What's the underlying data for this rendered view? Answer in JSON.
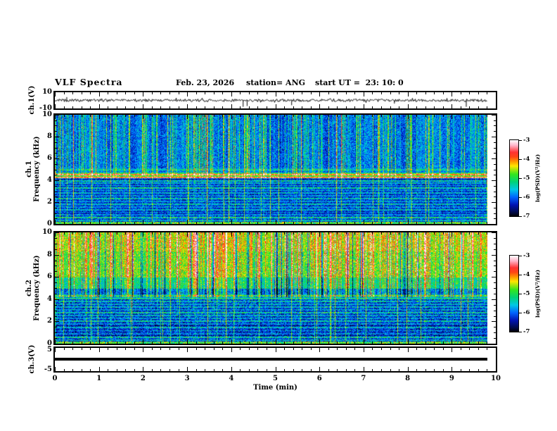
{
  "header": {
    "title": "VLF Spectra",
    "date": "Feb. 23, 2026",
    "station": "station= ANG",
    "start_ut": "start UT =  23: 10: 0"
  },
  "x_axis": {
    "label": "Time (min)",
    "min": 0,
    "max": 10,
    "major_tick_labels": [
      "0",
      "1",
      "2",
      "3",
      "4",
      "5",
      "6",
      "7",
      "8",
      "9",
      "10"
    ],
    "minor_step": 0.2,
    "data_end_min": 9.8
  },
  "panels": {
    "ch1_volt": {
      "ylabel": "ch.1(V)",
      "ymin": -10,
      "ymax": 10,
      "tick_labels": [
        "10",
        "-10"
      ]
    },
    "ch1_spec": {
      "ylabel_ch": "ch.1",
      "ylabel_axis": "Frequency (kHz)",
      "ymin": 0,
      "ymax": 10,
      "tick_labels": [
        "10",
        "8",
        "6",
        "4",
        "2",
        "0"
      ],
      "minor_step": 0.5
    },
    "ch2_spec": {
      "ylabel_ch": "ch.2",
      "ylabel_axis": "Frequency (kHz)",
      "ymin": 0,
      "ymax": 10,
      "tick_labels": [
        "10",
        "8",
        "6",
        "4",
        "2",
        "0"
      ],
      "minor_step": 0.5
    },
    "ch3_volt": {
      "ylabel": "ch.3(V)",
      "ymin": -5,
      "ymax": 5,
      "tick_labels": [
        "5",
        "-5"
      ]
    }
  },
  "colorbar": {
    "label": "log(PSD)(V²/Hz)",
    "min": -7,
    "max": -3,
    "tick_labels": [
      "-3",
      "-4",
      "-5",
      "-6",
      "-7"
    ],
    "stops": [
      [
        0.0,
        "#000005"
      ],
      [
        0.05,
        "#000a46"
      ],
      [
        0.15,
        "#0014b4"
      ],
      [
        0.25,
        "#0064ff"
      ],
      [
        0.35,
        "#00c8e6"
      ],
      [
        0.45,
        "#00d278"
      ],
      [
        0.55,
        "#32e61e"
      ],
      [
        0.66,
        "#ffe600"
      ],
      [
        0.72,
        "#ff9600"
      ],
      [
        0.78,
        "#ff4614"
      ],
      [
        0.84,
        "#ff3232"
      ],
      [
        0.93,
        "#ffb4c8"
      ],
      [
        1.0,
        "#ffffff"
      ]
    ]
  },
  "chart_data": [
    {
      "type": "line",
      "name": "ch1_waveform",
      "ylabel": "ch.1(V)",
      "xlim": [
        0,
        9.8
      ],
      "ylim": [
        -10,
        10
      ],
      "description": "broadband noise trace centered on 0 V, about ±1 V, with transient spikes",
      "noise_v": 1.0,
      "seed": 5,
      "spikes": [
        {
          "t_min": 0.27,
          "v": 4
        },
        {
          "t_min": 4.27,
          "v": -8
        },
        {
          "t_min": 4.36,
          "v": -7
        },
        {
          "t_min": 5.37,
          "v": -6
        },
        {
          "t_min": 7.7,
          "v": -4
        },
        {
          "t_min": 9.33,
          "v": -8
        }
      ]
    },
    {
      "type": "heatmap",
      "name": "ch1_spectrogram",
      "xlim": [
        0,
        9.8
      ],
      "ylim": [
        0,
        10
      ],
      "zlim": [
        -7,
        -3
      ],
      "z_units": "log(PSD)(V²/Hz)",
      "seed": 7,
      "noise": 0.45,
      "profile": [
        [
          4.75,
          -6.0
        ],
        [
          4.2,
          -5.35
        ],
        [
          0,
          -6.55
        ]
      ],
      "bright_band_kHz": [
        4.2,
        4.75
      ],
      "upper_fade_kHz": 4.5,
      "streak_prob": 0.3,
      "streak_amp": 1.5,
      "full_line_prob": 0.05,
      "full_line_amp": 1.3,
      "dark_col_prob": 0,
      "top_boost": 0,
      "hlines": [
        [
          0.35,
          1.0
        ],
        [
          0.6,
          1.4
        ],
        [
          0.85,
          0.8
        ],
        [
          1.1,
          0.7
        ],
        [
          1.35,
          1.0
        ],
        [
          1.6,
          0.8
        ],
        [
          1.85,
          1.1
        ],
        [
          2.1,
          0.8
        ],
        [
          2.35,
          1.2
        ],
        [
          2.6,
          0.8
        ],
        [
          2.85,
          1.0
        ],
        [
          3.1,
          0.9
        ],
        [
          3.3,
          1.3
        ],
        [
          3.55,
          0.9
        ],
        [
          3.75,
          1.0
        ],
        [
          3.95,
          1.2
        ],
        [
          4.3,
          1.7
        ],
        [
          4.55,
          1.5
        ],
        [
          5.0,
          0.6
        ]
      ],
      "bottom_bright_kHz": 0.25
    },
    {
      "type": "heatmap",
      "name": "ch2_spectrogram",
      "xlim": [
        0,
        9.8
      ],
      "ylim": [
        0,
        10
      ],
      "zlim": [
        -7,
        -3
      ],
      "z_units": "log(PSD)(V²/Hz)",
      "seed": 13,
      "noise": 0.5,
      "profile": [
        [
          6.0,
          -4.85
        ],
        [
          5.0,
          -5.35
        ],
        [
          4.0,
          -6.05
        ],
        [
          0,
          -6.6
        ]
      ],
      "bright_band_kHz": [
        6.0,
        10.0
      ],
      "upper_fade_kHz": 4.2,
      "streak_prob": 0.38,
      "streak_amp": 1.6,
      "full_line_prob": 0.05,
      "full_line_amp": 1.2,
      "dark_col_prob": 0.1,
      "top_boost": 0.2,
      "hlines": [
        [
          0.35,
          1.0
        ],
        [
          0.6,
          1.3
        ],
        [
          0.9,
          0.8
        ],
        [
          1.2,
          0.9
        ],
        [
          1.5,
          1.1
        ],
        [
          1.8,
          0.8
        ],
        [
          2.05,
          1.2
        ],
        [
          2.3,
          0.9
        ],
        [
          2.55,
          1.0
        ],
        [
          2.8,
          1.3
        ],
        [
          3.05,
          0.9
        ],
        [
          3.3,
          1.1
        ],
        [
          3.6,
          1.0
        ],
        [
          3.85,
          1.2
        ],
        [
          4.1,
          0.9
        ],
        [
          4.35,
          1.1
        ]
      ],
      "bottom_bright_kHz": 0.25
    },
    {
      "type": "line",
      "name": "ch3_waveform",
      "ylabel": "ch.3(V)",
      "xlim": [
        0,
        9.8
      ],
      "ylim": [
        -5,
        5
      ],
      "description": "constant flat thick line at 0 V",
      "value_v": 0,
      "line_thickness_px": 4
    }
  ]
}
